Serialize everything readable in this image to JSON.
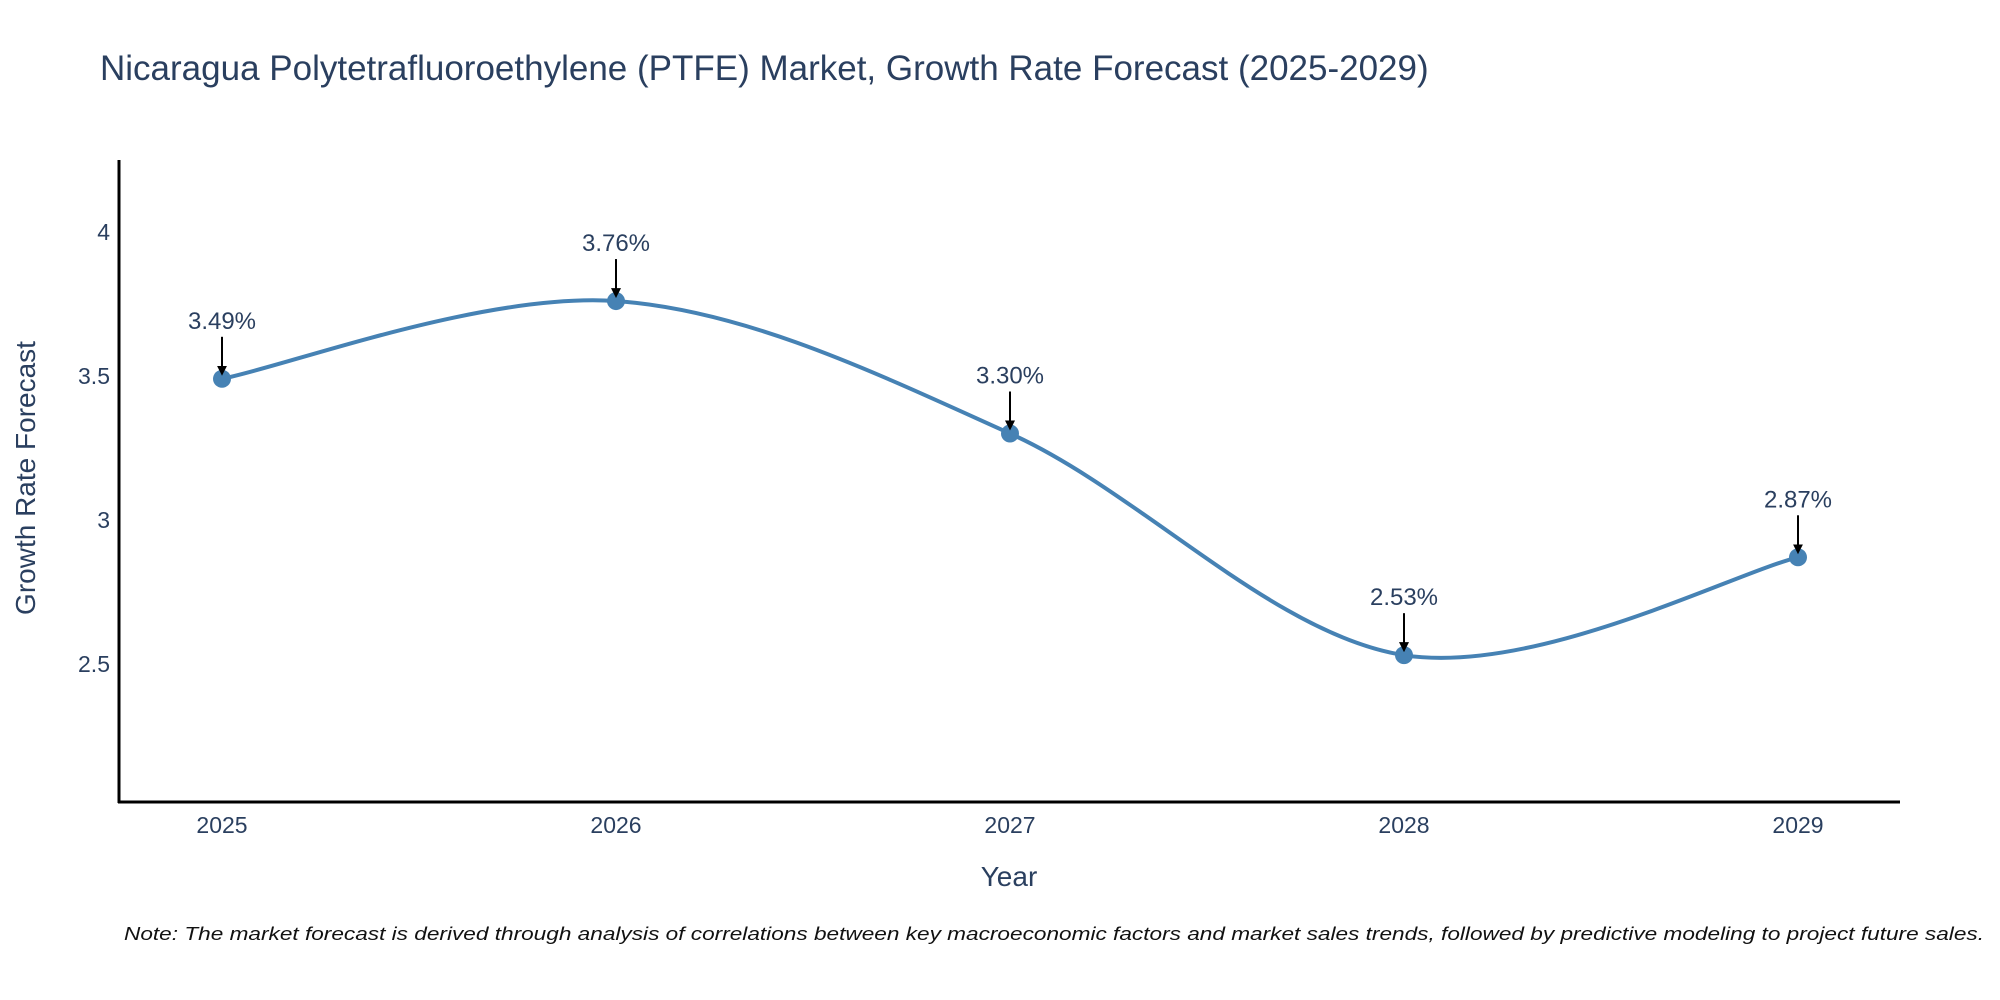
{
  "chart_data": {
    "type": "line",
    "title": "Nicaragua Polytetrafluoroethylene (PTFE) Market, Growth Rate Forecast (2025-2029)",
    "xlabel": "Year",
    "ylabel": "Growth Rate Forecast",
    "categories": [
      "2025",
      "2026",
      "2027",
      "2028",
      "2029"
    ],
    "series": [
      {
        "name": "Growth Rate Forecast",
        "values": [
          3.49,
          3.76,
          3.3,
          2.53,
          2.87
        ],
        "labels": [
          "3.49%",
          "3.76%",
          "3.30%",
          "2.53%",
          "2.87%"
        ]
      }
    ],
    "ylim": [
      2.02,
      4.25
    ],
    "yticks": [
      2.5,
      3,
      3.5,
      4
    ],
    "ytick_labels": [
      "2.5",
      "3",
      "3.5",
      "4"
    ],
    "grid": false,
    "line_shape": "smooth",
    "note": "Note: The market forecast is derived through analysis of correlations between key macroeconomic factors and market sales trends, followed by predictive modeling to project future sales."
  },
  "colors": {
    "line": "#4682b4",
    "marker": "#4682b4",
    "arrow": "#000000",
    "axis": "#000000",
    "text": "#2a3f5f"
  }
}
